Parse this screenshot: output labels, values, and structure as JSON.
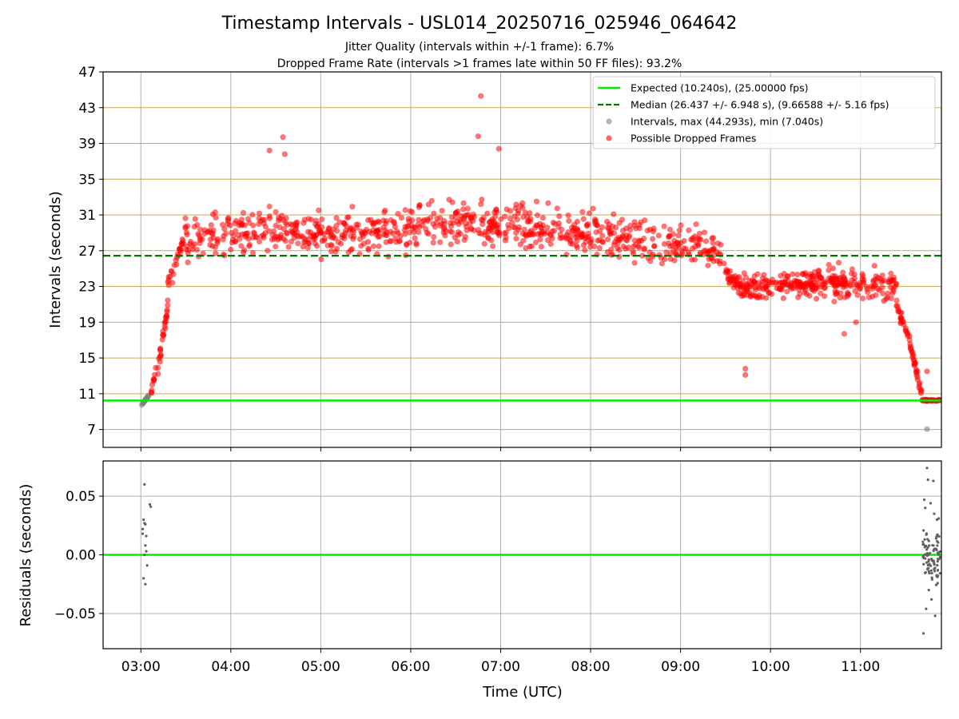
{
  "title": "Timestamp Intervals - USL014_20250716_025946_064642",
  "subtitle_1": "Jitter Quality (intervals within +/-1 frame): 6.7%",
  "subtitle_2": "Dropped Frame Rate (intervals >1 frames late within 50 FF files): 93.2%",
  "colors": {
    "expected_line": "#00ee00",
    "median_line": "#007700",
    "normal_points": "#808080",
    "dropped_points": "#ff0000",
    "horizontal_grid": "#c8a850",
    "vertical_grid": "#b0b0b0",
    "residual_points": "#606060"
  },
  "chart_data": [
    {
      "type": "scatter",
      "name": "intervals",
      "ylabel": "Intervals (seconds)",
      "xlabel": "",
      "x_unit": "hours UTC",
      "xlim": [
        2.58,
        11.9
      ],
      "ylim": [
        5.0,
        47.0
      ],
      "yticks": [
        7,
        11,
        15,
        19,
        23,
        27,
        31,
        35,
        39,
        43,
        47
      ],
      "grid": true,
      "legend_position": "top-right",
      "legend": [
        {
          "label": "Expected (10.240s), (25.00000 fps)",
          "kind": "line",
          "color": "#00ee00"
        },
        {
          "label": "Median (26.437 +/- 6.948 s), (9.66588 +/- 5.16 fps)",
          "kind": "dashed",
          "color": "#007700"
        },
        {
          "label": "Intervals, max (44.293s), min (7.040s)",
          "kind": "marker",
          "color": "#808080"
        },
        {
          "label": "Possible Dropped Frames",
          "kind": "marker",
          "color": "#ff0000"
        }
      ],
      "expected": 10.24,
      "median": 26.437,
      "max_interval": 44.293,
      "min_interval": 7.04,
      "segments": [
        {
          "x0": 3.0,
          "x1": 3.1,
          "n": 18,
          "ylow": 9.6,
          "yhigh": 11.0,
          "jitter": 0.0,
          "series": "normal"
        },
        {
          "x0": 3.1,
          "x1": 3.18,
          "n": 10,
          "ylow": 10.2,
          "yhigh": 14.5,
          "jitter": 0.4,
          "series": "dropped"
        },
        {
          "x0": 3.18,
          "x1": 3.3,
          "n": 28,
          "ylow": 13.0,
          "yhigh": 21.0,
          "jitter": 0.8,
          "series": "dropped"
        },
        {
          "x0": 3.3,
          "x1": 3.5,
          "n": 30,
          "ylow": 23.0,
          "yhigh": 29.5,
          "jitter": 1.2,
          "series": "dropped"
        },
        {
          "x0": 3.5,
          "x1": 4.2,
          "n": 90,
          "ylow": 28.0,
          "yhigh": 29.5,
          "jitter": 2.4,
          "series": "dropped"
        },
        {
          "x0": 4.2,
          "x1": 5.0,
          "n": 110,
          "ylow": 29.5,
          "yhigh": 29.0,
          "jitter": 2.6,
          "series": "dropped"
        },
        {
          "x0": 5.0,
          "x1": 6.0,
          "n": 140,
          "ylow": 28.5,
          "yhigh": 29.5,
          "jitter": 2.5,
          "series": "dropped"
        },
        {
          "x0": 6.0,
          "x1": 7.0,
          "n": 140,
          "ylow": 29.5,
          "yhigh": 30.0,
          "jitter": 2.6,
          "series": "dropped"
        },
        {
          "x0": 7.0,
          "x1": 8.0,
          "n": 140,
          "ylow": 30.0,
          "yhigh": 29.0,
          "jitter": 2.5,
          "series": "dropped"
        },
        {
          "x0": 8.0,
          "x1": 9.0,
          "n": 130,
          "ylow": 29.0,
          "yhigh": 27.5,
          "jitter": 2.4,
          "series": "dropped"
        },
        {
          "x0": 9.0,
          "x1": 9.5,
          "n": 60,
          "ylow": 28.0,
          "yhigh": 27.0,
          "jitter": 2.2,
          "series": "dropped"
        },
        {
          "x0": 9.5,
          "x1": 9.7,
          "n": 40,
          "ylow": 24.5,
          "yhigh": 22.5,
          "jitter": 1.4,
          "series": "dropped"
        },
        {
          "x0": 9.7,
          "x1": 10.5,
          "n": 150,
          "ylow": 22.8,
          "yhigh": 23.5,
          "jitter": 1.6,
          "series": "dropped"
        },
        {
          "x0": 10.5,
          "x1": 11.4,
          "n": 150,
          "ylow": 23.5,
          "yhigh": 23.0,
          "jitter": 1.7,
          "series": "dropped"
        },
        {
          "x0": 11.4,
          "x1": 11.55,
          "n": 25,
          "ylow": 21.0,
          "yhigh": 17.0,
          "jitter": 0.8,
          "series": "dropped"
        },
        {
          "x0": 11.55,
          "x1": 11.68,
          "n": 30,
          "ylow": 16.5,
          "yhigh": 10.8,
          "jitter": 0.7,
          "series": "dropped"
        },
        {
          "x0": 11.68,
          "x1": 11.9,
          "n": 30,
          "ylow": 10.3,
          "yhigh": 10.3,
          "jitter": 0.1,
          "series": "dropped"
        },
        {
          "x0": 11.68,
          "x1": 11.9,
          "n": 15,
          "ylow": 10.24,
          "yhigh": 10.24,
          "jitter": 0.05,
          "series": "normal"
        }
      ],
      "extra_points": [
        {
          "x": 6.78,
          "y": 44.3,
          "series": "dropped"
        },
        {
          "x": 6.75,
          "y": 39.8,
          "series": "dropped"
        },
        {
          "x": 4.58,
          "y": 39.7,
          "series": "dropped"
        },
        {
          "x": 4.43,
          "y": 38.2,
          "series": "dropped"
        },
        {
          "x": 4.6,
          "y": 37.8,
          "series": "dropped"
        },
        {
          "x": 6.98,
          "y": 38.4,
          "series": "dropped"
        },
        {
          "x": 9.72,
          "y": 13.8,
          "series": "dropped"
        },
        {
          "x": 9.72,
          "y": 13.1,
          "series": "dropped"
        },
        {
          "x": 10.82,
          "y": 17.7,
          "series": "dropped"
        },
        {
          "x": 10.95,
          "y": 19.0,
          "series": "dropped"
        },
        {
          "x": 11.74,
          "y": 7.04,
          "series": "normal"
        },
        {
          "x": 11.74,
          "y": 13.5,
          "series": "dropped"
        }
      ]
    },
    {
      "type": "scatter",
      "name": "residuals",
      "ylabel": "Residuals (seconds)",
      "xlabel": "Time (UTC)",
      "x_unit": "hours UTC",
      "xlim": [
        2.58,
        11.9
      ],
      "ylim": [
        -0.08,
        0.08
      ],
      "yticks": [
        -0.05,
        0.0,
        0.05
      ],
      "ytick_labels": [
        "−0.05",
        "0.00",
        "0.05"
      ],
      "xticks": [
        3,
        4,
        5,
        6,
        7,
        8,
        9,
        10,
        11
      ],
      "xtick_labels": [
        "03:00",
        "04:00",
        "05:00",
        "06:00",
        "07:00",
        "08:00",
        "09:00",
        "10:00",
        "11:00"
      ],
      "grid": true,
      "zero_line": 0.0,
      "points": [
        {
          "x": 3.02,
          "y": 0.022
        },
        {
          "x": 3.03,
          "y": 0.03
        },
        {
          "x": 3.04,
          "y": 0.06
        },
        {
          "x": 3.05,
          "y": 0.026
        },
        {
          "x": 3.06,
          "y": 0.016
        },
        {
          "x": 3.04,
          "y": 0.0
        },
        {
          "x": 3.05,
          "y": 0.008
        },
        {
          "x": 3.06,
          "y": 0.003
        },
        {
          "x": 3.03,
          "y": -0.02
        },
        {
          "x": 3.05,
          "y": -0.025
        },
        {
          "x": 3.07,
          "y": -0.009
        },
        {
          "x": 3.1,
          "y": 0.043
        },
        {
          "x": 3.11,
          "y": 0.041
        },
        {
          "x": 3.02,
          "y": 0.018
        },
        {
          "x": 3.04,
          "y": 0.027
        },
        {
          "x": 11.7,
          "y": -0.067
        },
        {
          "x": 11.71,
          "y": 0.047
        },
        {
          "x": 11.72,
          "y": 0.04
        },
        {
          "x": 11.73,
          "y": -0.046
        },
        {
          "x": 11.74,
          "y": 0.074
        },
        {
          "x": 11.75,
          "y": 0.064
        },
        {
          "x": 11.76,
          "y": -0.03
        },
        {
          "x": 11.78,
          "y": 0.044
        },
        {
          "x": 11.79,
          "y": -0.038
        },
        {
          "x": 11.81,
          "y": 0.063
        },
        {
          "x": 11.82,
          "y": 0.035
        },
        {
          "x": 11.83,
          "y": -0.052
        },
        {
          "x": 11.85,
          "y": 0.03
        },
        {
          "x": 11.86,
          "y": -0.013
        },
        {
          "x": 11.87,
          "y": 0.031
        }
      ],
      "cloud": {
        "x0": 11.69,
        "x1": 11.89,
        "n": 85,
        "center": 0.0,
        "spread": 0.025
      }
    }
  ]
}
